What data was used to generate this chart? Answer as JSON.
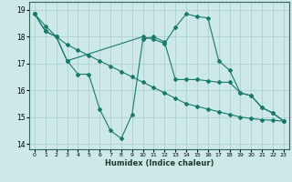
{
  "title": "",
  "xlabel": "Humidex (Indice chaleur)",
  "bg_color": "#cce8e8",
  "grid_color": "#aacccc",
  "line_color": "#1a7a6a",
  "xlim": [
    -0.5,
    23.5
  ],
  "ylim": [
    13.8,
    19.3
  ],
  "yticks": [
    14,
    15,
    16,
    17,
    18,
    19
  ],
  "xticks": [
    0,
    1,
    2,
    3,
    4,
    5,
    6,
    7,
    8,
    9,
    10,
    11,
    12,
    13,
    14,
    15,
    16,
    17,
    18,
    19,
    20,
    21,
    22,
    23
  ],
  "series": [
    {
      "x": [
        0,
        1,
        2,
        3,
        4,
        5,
        6,
        7,
        8,
        9,
        10,
        11,
        12,
        13,
        14,
        15,
        16,
        17,
        18,
        19,
        20,
        21,
        22,
        23
      ],
      "y": [
        18.85,
        18.2,
        18.0,
        17.1,
        16.6,
        16.6,
        15.3,
        14.5,
        14.2,
        15.1,
        17.9,
        18.0,
        17.8,
        16.4,
        16.4,
        16.4,
        16.35,
        16.3,
        16.3,
        15.9,
        15.8,
        15.35,
        15.15,
        14.85
      ]
    },
    {
      "x": [
        0,
        1,
        2,
        3,
        10,
        11,
        12,
        13,
        14,
        15,
        16,
        17,
        18,
        19,
        20,
        21,
        22,
        23
      ],
      "y": [
        18.85,
        18.2,
        18.0,
        17.1,
        18.0,
        17.9,
        17.75,
        18.35,
        18.85,
        18.75,
        18.7,
        17.1,
        16.75,
        15.9,
        15.8,
        15.35,
        15.15,
        14.85
      ]
    },
    {
      "x": [
        0,
        1,
        2,
        3,
        4,
        5,
        6,
        7,
        8,
        9,
        10,
        11,
        12,
        13,
        14,
        15,
        16,
        17,
        18,
        19,
        20,
        21,
        22,
        23
      ],
      "y": [
        18.85,
        18.4,
        18.0,
        17.7,
        17.5,
        17.3,
        17.1,
        16.9,
        16.7,
        16.5,
        16.3,
        16.1,
        15.9,
        15.7,
        15.5,
        15.4,
        15.3,
        15.2,
        15.1,
        15.0,
        14.95,
        14.9,
        14.88,
        14.85
      ]
    }
  ]
}
